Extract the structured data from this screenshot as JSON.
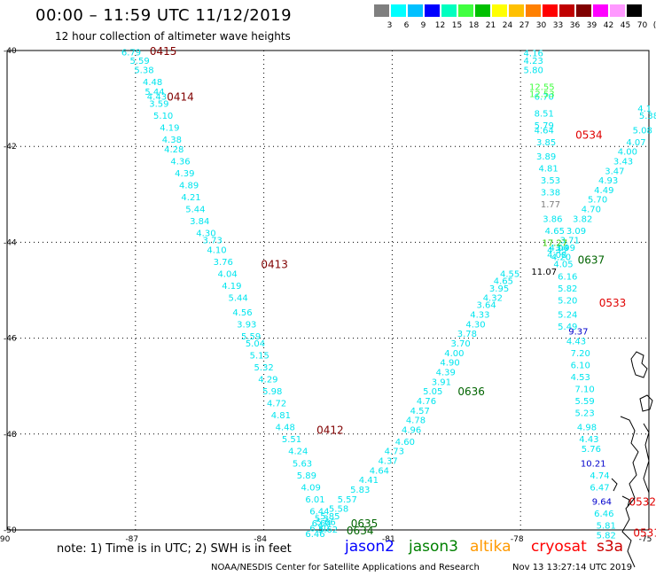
{
  "header": {
    "title": "00:00 – 11:59 UTC 11/12/2019",
    "subtitle": "12 hour collection of altimeter wave heights"
  },
  "color_scale": {
    "swatches": [
      "#7f7f7f",
      "#00ffff",
      "#00c0ff",
      "#0000ff",
      "#00ffbf",
      "#40ff40",
      "#00c000",
      "#ffff00",
      "#ffc000",
      "#ff8000",
      "#ff0000",
      "#c00000",
      "#800000",
      "#ff00ff",
      "#ff99ff",
      "#000000"
    ],
    "labels": [
      "3",
      "6",
      "9",
      "12",
      "15",
      "18",
      "21",
      "24",
      "27",
      "30",
      "33",
      "36",
      "39",
      "42",
      "45",
      "70",
      "(ft)"
    ]
  },
  "footer": {
    "note": "note:  1) Time is in UTC;  2) SWH is in feet",
    "satellites": [
      {
        "name": "jason2",
        "color": "#0000ff"
      },
      {
        "name": "jason3",
        "color": "#008000"
      },
      {
        "name": "altika",
        "color": "#ff9900"
      },
      {
        "name": "cryosat",
        "color": "#ff0000"
      },
      {
        "name": "s3a",
        "color": "#cc0000"
      }
    ],
    "credit": "NOAA/NESDIS Center for Satellite Applications and Research",
    "timestamp": "Nov 13 13:27:14 UTC 2019"
  },
  "chart_data": {
    "type": "scatter",
    "title": "",
    "xlabel": "",
    "ylabel": "",
    "xlim": [
      -90,
      -75
    ],
    "ylim": [
      -50,
      -40
    ],
    "x_ticks": [
      -90,
      -87,
      -84,
      -81,
      -78,
      -75
    ],
    "y_ticks": [
      -40,
      -42,
      -44,
      -46,
      -48,
      -50
    ],
    "grid": true,
    "series": [
      {
        "color": "#00e5ee",
        "points": [
          [
            -87.1,
            -40.03,
            "6.79"
          ],
          [
            -86.9,
            -40.2,
            "5.59"
          ],
          [
            -86.8,
            -40.4,
            "5.38"
          ],
          [
            -86.6,
            -40.65,
            "4.48"
          ],
          [
            -86.55,
            -40.85,
            "5.44"
          ],
          [
            -86.5,
            -40.95,
            "4.43"
          ],
          [
            -86.45,
            -41.1,
            "3.59"
          ],
          [
            -86.35,
            -41.35,
            "5.10"
          ],
          [
            -86.2,
            -41.6,
            "4.19"
          ],
          [
            -86.15,
            -41.85,
            "4.38"
          ],
          [
            -86.1,
            -42.05,
            "4.28"
          ],
          [
            -85.95,
            -42.3,
            "4.36"
          ],
          [
            -85.85,
            -42.55,
            "4.39"
          ],
          [
            -85.75,
            -42.8,
            "4.89"
          ],
          [
            -85.7,
            -43.05,
            "4.21"
          ],
          [
            -85.6,
            -43.3,
            "5.44"
          ],
          [
            -85.5,
            -43.55,
            "3.84"
          ],
          [
            -85.35,
            -43.8,
            "4.30"
          ],
          [
            -85.2,
            -43.95,
            "3.73"
          ],
          [
            -85.1,
            -44.15,
            "4.10"
          ],
          [
            -84.95,
            -44.4,
            "3.76"
          ],
          [
            -84.85,
            -44.65,
            "4.04"
          ],
          [
            -84.75,
            -44.9,
            "4.19"
          ],
          [
            -84.6,
            -45.15,
            "5.44"
          ],
          [
            -84.5,
            -45.45,
            "4.56"
          ],
          [
            -84.4,
            -45.7,
            "3.93"
          ],
          [
            -84.3,
            -45.95,
            "5.59"
          ],
          [
            -84.2,
            -46.1,
            "5.04"
          ],
          [
            -84.1,
            -46.35,
            "5.15"
          ],
          [
            -84.0,
            -46.6,
            "5.32"
          ],
          [
            -83.9,
            -46.85,
            "4.29"
          ],
          [
            -83.8,
            -47.1,
            "5.98"
          ],
          [
            -83.7,
            -47.35,
            "4.72"
          ],
          [
            -83.6,
            -47.6,
            "4.81"
          ],
          [
            -83.5,
            -47.85,
            "4.48"
          ],
          [
            -83.35,
            -48.1,
            "5.51"
          ],
          [
            -83.2,
            -48.35,
            "4.24"
          ],
          [
            -83.1,
            -48.6,
            "5.63"
          ],
          [
            -83.0,
            -48.85,
            "5.89"
          ],
          [
            -82.9,
            -49.1,
            "4.09"
          ],
          [
            -82.8,
            -49.35,
            "6.01"
          ],
          [
            -82.7,
            -49.6,
            "6.44"
          ],
          [
            -82.65,
            -49.75,
            "5.3"
          ],
          [
            -82.65,
            -49.85,
            "6.64"
          ],
          [
            -82.7,
            -49.95,
            "6.30"
          ],
          [
            -82.5,
            -49.98,
            "5.62"
          ],
          [
            -82.8,
            -50.07,
            "6.46"
          ],
          [
            -82.45,
            -49.7,
            "5.85"
          ],
          [
            -82.55,
            -49.82,
            "5.66"
          ],
          [
            -82.25,
            -49.55,
            "5.58"
          ],
          [
            -82.05,
            -49.35,
            "5.57"
          ],
          [
            -81.75,
            -49.15,
            "5.83"
          ],
          [
            -81.55,
            -48.95,
            "4.41"
          ],
          [
            -81.3,
            -48.75,
            "4.64"
          ],
          [
            -81.1,
            -48.55,
            "4.37"
          ],
          [
            -80.95,
            -48.35,
            "4.73"
          ],
          [
            -80.7,
            -48.15,
            "4.60"
          ],
          [
            -80.55,
            -47.9,
            "4.96"
          ],
          [
            -80.45,
            -47.7,
            "4.78"
          ],
          [
            -80.35,
            -47.5,
            "4.57"
          ],
          [
            -80.2,
            -47.3,
            "4.76"
          ],
          [
            -80.05,
            -47.1,
            "5.05"
          ],
          [
            -79.85,
            -46.9,
            "3.91"
          ],
          [
            -79.75,
            -46.7,
            "4.39"
          ],
          [
            -79.65,
            -46.5,
            "4.90"
          ],
          [
            -79.55,
            -46.3,
            "4.00"
          ],
          [
            -79.4,
            -46.1,
            "3.70"
          ],
          [
            -79.25,
            -45.9,
            "3.78"
          ],
          [
            -79.05,
            -45.7,
            "4.30"
          ],
          [
            -78.95,
            -45.5,
            "4.33"
          ],
          [
            -78.8,
            -45.3,
            "3.64"
          ],
          [
            -78.65,
            -45.15,
            "4.32"
          ],
          [
            -78.5,
            -44.95,
            "3.95"
          ],
          [
            -78.4,
            -44.8,
            "4.65"
          ],
          [
            -78.25,
            -44.65,
            "4.55"
          ],
          [
            -77.7,
            -40.05,
            "4.16"
          ],
          [
            -77.7,
            -40.2,
            "4.23"
          ],
          [
            -77.7,
            -40.4,
            "5.80"
          ],
          [
            -77.45,
            -40.95,
            "6.70"
          ],
          [
            -77.45,
            -41.3,
            "8.51"
          ],
          [
            -77.45,
            -41.55,
            "5.79"
          ],
          [
            -77.45,
            -41.65,
            "4.64"
          ],
          [
            -77.4,
            -41.9,
            "3.85"
          ],
          [
            -77.4,
            -42.2,
            "3.89"
          ],
          [
            -77.35,
            -42.45,
            "4.81"
          ],
          [
            -77.3,
            -42.7,
            "3.53"
          ],
          [
            -77.3,
            -42.95,
            "3.38"
          ],
          [
            -77.25,
            -43.5,
            "3.86"
          ],
          [
            -77.2,
            -43.75,
            "4.65"
          ],
          [
            -76.95,
            -44.1,
            "3.99"
          ],
          [
            -77.15,
            -44.25,
            "4.08"
          ],
          [
            -77.05,
            -44.3,
            "4.20"
          ],
          [
            -77.0,
            -44.45,
            "4.05"
          ],
          [
            -76.9,
            -44.7,
            "6.16"
          ],
          [
            -76.9,
            -44.95,
            "5.82"
          ],
          [
            -76.9,
            -45.2,
            "5.20"
          ],
          [
            -76.9,
            -45.5,
            "5.24"
          ],
          [
            -76.9,
            -45.75,
            "5.49"
          ],
          [
            -76.7,
            -46.05,
            "4.43"
          ],
          [
            -76.6,
            -46.3,
            "7.20"
          ],
          [
            -76.6,
            -46.55,
            "6.10"
          ],
          [
            -76.6,
            -46.8,
            "4.53"
          ],
          [
            -76.5,
            -47.05,
            "7.10"
          ],
          [
            -76.5,
            -47.3,
            "5.59"
          ],
          [
            -76.5,
            -47.55,
            "5.23"
          ],
          [
            -76.45,
            -47.85,
            "4.98"
          ],
          [
            -76.4,
            -48.1,
            "4.43"
          ],
          [
            -76.35,
            -48.3,
            "5.76"
          ],
          [
            -76.15,
            -48.85,
            "4.74"
          ],
          [
            -76.15,
            -49.1,
            "6.47"
          ],
          [
            -76.05,
            -49.65,
            "6.46"
          ],
          [
            -76.0,
            -49.9,
            "5.81"
          ],
          [
            -76.0,
            -50.1,
            "5.82"
          ],
          [
            -75.1,
            -41.2,
            "4.1"
          ],
          [
            -75.0,
            -41.35,
            "5.38"
          ],
          [
            -75.15,
            -41.65,
            "5.08"
          ],
          [
            -75.3,
            -41.9,
            "4.07"
          ],
          [
            -75.5,
            -42.1,
            "4.00"
          ],
          [
            -75.6,
            -42.3,
            "3.43"
          ],
          [
            -75.8,
            -42.5,
            "3.47"
          ],
          [
            -75.95,
            -42.7,
            "4.93"
          ],
          [
            -76.05,
            -42.9,
            "4.49"
          ],
          [
            -76.2,
            -43.1,
            "5.70"
          ],
          [
            -76.35,
            -43.3,
            "4.70"
          ],
          [
            -76.55,
            -43.5,
            "3.82"
          ],
          [
            -76.7,
            -43.75,
            "3.09"
          ],
          [
            -76.85,
            -43.95,
            "3.71"
          ],
          [
            -77.1,
            -44.1,
            "4.04"
          ],
          [
            -77.15,
            -44.15,
            "4.35"
          ]
        ]
      },
      {
        "color": "#40ff40",
        "points": [
          [
            -77.5,
            -40.75,
            "12.55"
          ],
          [
            -77.5,
            -40.9,
            "12.53"
          ]
        ]
      },
      {
        "color": "#7f7f7f",
        "points": [
          [
            -77.3,
            -43.2,
            "1.77"
          ]
        ]
      },
      {
        "color": "#33cc00",
        "points": [
          [
            -77.2,
            -44.0,
            "17.27"
          ]
        ]
      },
      {
        "color": "#000000",
        "points": [
          [
            -77.45,
            -44.6,
            "11.07"
          ]
        ]
      },
      {
        "color": "#0000cc",
        "points": [
          [
            -76.65,
            -45.85,
            "9.37"
          ],
          [
            -76.3,
            -48.6,
            "10.21"
          ],
          [
            -76.1,
            -49.4,
            "9.64"
          ]
        ]
      }
    ],
    "annotations": [
      {
        "text": "0415",
        "x": -86.35,
        "y": -40.0,
        "color": "#800000"
      },
      {
        "text": "0414",
        "x": -85.95,
        "y": -40.95,
        "color": "#800000"
      },
      {
        "text": "0413",
        "x": -83.75,
        "y": -44.45,
        "color": "#800000"
      },
      {
        "text": "0412",
        "x": -82.45,
        "y": -47.9,
        "color": "#800000"
      },
      {
        "text": "0635",
        "x": -81.65,
        "y": -49.85,
        "color": "#006400"
      },
      {
        "text": "0634",
        "x": -81.75,
        "y": -50.0,
        "color": "#006400"
      },
      {
        "text": "0636",
        "x": -79.15,
        "y": -47.1,
        "color": "#006400"
      },
      {
        "text": "0637",
        "x": -76.35,
        "y": -44.35,
        "color": "#006400"
      },
      {
        "text": "0534",
        "x": -76.4,
        "y": -41.75,
        "color": "#e00000"
      },
      {
        "text": "0533",
        "x": -75.85,
        "y": -45.25,
        "color": "#e00000"
      },
      {
        "text": "0532",
        "x": -75.15,
        "y": -49.4,
        "color": "#e00000"
      },
      {
        "text": "0531",
        "x": -75.05,
        "y": -50.05,
        "color": "#e00000"
      }
    ]
  }
}
